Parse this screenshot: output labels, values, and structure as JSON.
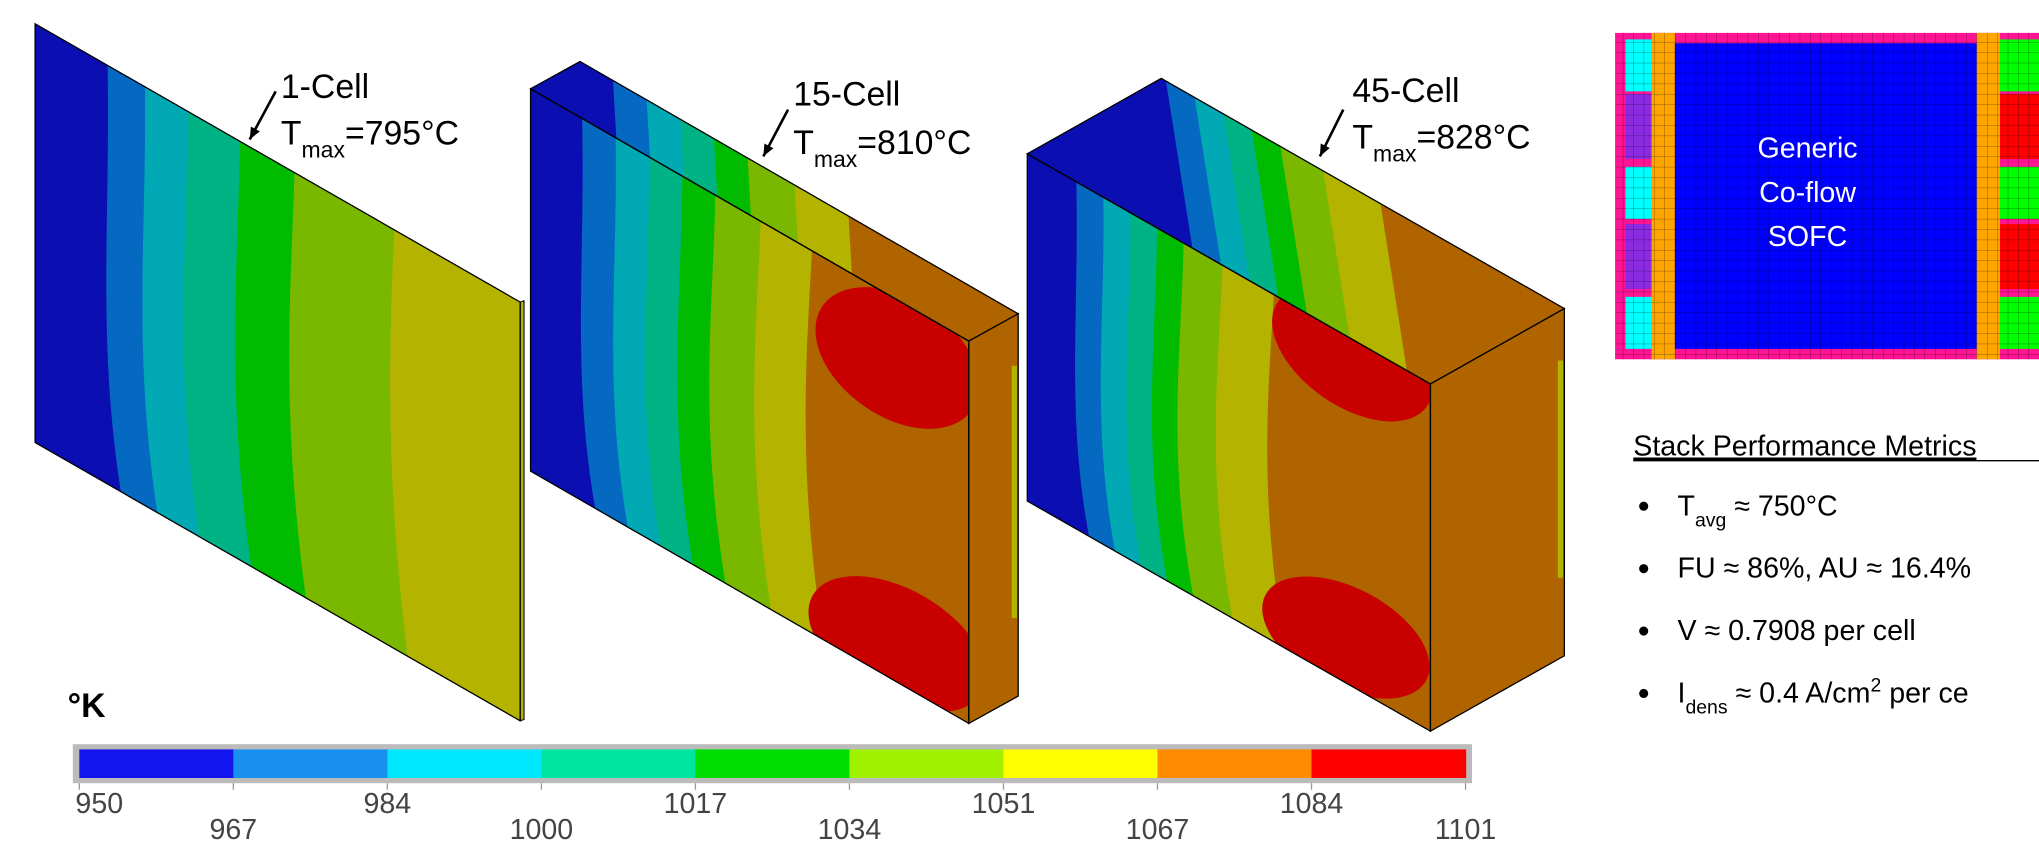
{
  "panels": [
    {
      "label": "1-Cell",
      "tmax": [
        {
          "text": "T"
        },
        {
          "sub": "max"
        },
        {
          "text": "=795°C"
        }
      ]
    },
    {
      "label": "15-Cell",
      "tmax": [
        {
          "text": "T"
        },
        {
          "sub": "max"
        },
        {
          "text": "=810°C"
        }
      ]
    },
    {
      "label": "45-Cell",
      "tmax": [
        {
          "text": "T"
        },
        {
          "sub": "max"
        },
        {
          "text": "=828°C"
        }
      ]
    }
  ],
  "colorbar": {
    "unit": "°K",
    "ticks": [
      950,
      967,
      984,
      1000,
      1017,
      1034,
      1051,
      1067,
      1084,
      1101
    ],
    "colors": [
      "#1414ee",
      "#1890ee",
      "#00e8ff",
      "#00e6a0",
      "#00dd00",
      "#a0f000",
      "#ffff00",
      "#ff8c00",
      "#ff0000"
    ]
  },
  "inset": {
    "lines": [
      "Generic",
      "Co-flow",
      "SOFC"
    ]
  },
  "metrics": {
    "title": "Stack Performance Metrics",
    "items": [
      [
        {
          "text": "T"
        },
        {
          "sub": "avg"
        },
        {
          "text": " ≈ 750°C"
        }
      ],
      [
        {
          "text": "FU ≈ 86%, AU ≈ 16.4%"
        }
      ],
      [
        {
          "text": "V ≈ 0.7908 per cell"
        }
      ],
      [
        {
          "text": "I"
        },
        {
          "sub": "dens"
        },
        {
          "text": " ≈ 0.4 A/cm"
        },
        {
          "sup": "2"
        },
        {
          "text": " per ce"
        }
      ]
    ]
  }
}
